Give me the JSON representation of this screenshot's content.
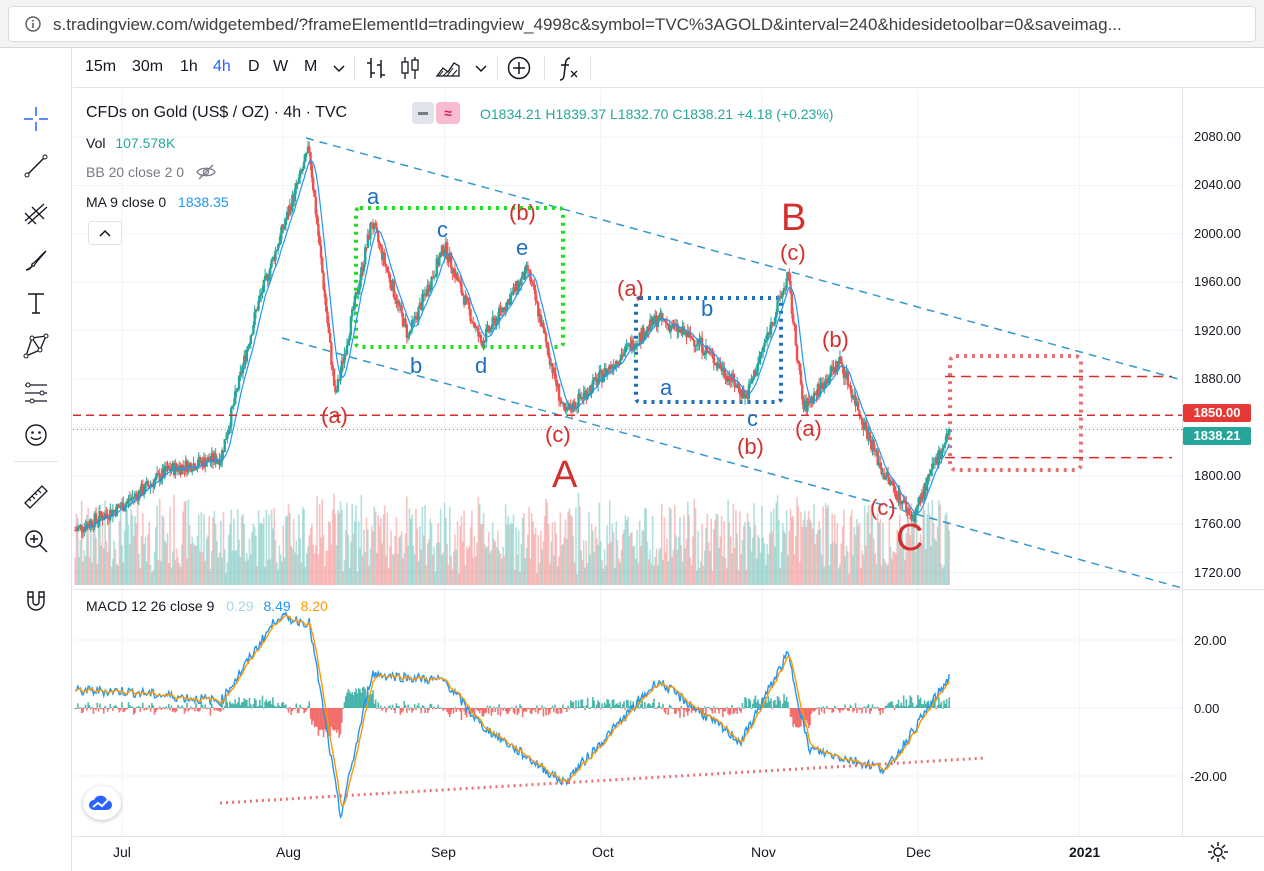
{
  "browser": {
    "url": "s.tradingview.com/widgetembed/?frameElementId=tradingview_4998c&symbol=TVC%3AGOLD&interval=240&hidesidetoolbar=0&saveimag..."
  },
  "toolbar": {
    "timeframes": [
      "15m",
      "30m",
      "1h",
      "4h",
      "D",
      "W",
      "M"
    ],
    "active_timeframe": "4h"
  },
  "legend": {
    "symbol": "CFDs on Gold (US$ / OZ) · 4h · TVC",
    "open_label": "O",
    "open": "1834.21",
    "high_label": "H",
    "high": "1839.37",
    "low_label": "L",
    "low": "1832.70",
    "close_label": "C",
    "close": "1838.21",
    "change": "+4.18 (+0.23%)",
    "vol_label": "Vol",
    "vol_value": "107.578K",
    "bb_label": "BB 20 close 2 0",
    "ma_label": "MA 9 close 0",
    "ma_value": "1838.35",
    "macd_label": "MACD 12 26 close 9",
    "macd_hist": "0.29",
    "macd_line": "8.49",
    "macd_signal": "8.20"
  },
  "price_axis": {
    "ticks": [
      "2080.00",
      "2040.00",
      "2000.00",
      "1960.00",
      "1920.00",
      "1880.00",
      "1800.00",
      "1760.00",
      "1720.00"
    ],
    "marker_1850": "1850.00",
    "last_price": "1838.21"
  },
  "macd_axis": {
    "ticks": [
      "20.00",
      "0.00",
      "-20.00"
    ]
  },
  "time_axis": {
    "labels": [
      "Jul",
      "Aug",
      "Sep",
      "Oct",
      "Nov",
      "Dec",
      "2021"
    ]
  },
  "annotations": {
    "red": [
      "(a)",
      "(b)",
      "(c)",
      "A",
      "(a)",
      "B",
      "(c)",
      "(b)",
      "(a)",
      "(b)",
      "(c)",
      "C"
    ],
    "blue": [
      "a",
      "c",
      "e",
      "b",
      "d",
      "b",
      "a",
      "c"
    ]
  },
  "colors": {
    "up": "#26a69a",
    "down": "#ef5350",
    "ma": "#2196f3",
    "annotation_red": "#d32f2f",
    "annotation_blue": "#1e6fc0",
    "green_box": "#22dd22",
    "blue_box": "#1e6fc0",
    "pink_box": "#e57373",
    "level_line": "#d32f2f",
    "price_tag_teal": "#26a69a",
    "macd_line": "#2196f3",
    "macd_signal": "#ff9800"
  },
  "chart_data": {
    "type": "candlestick",
    "symbol": "TVC:GOLD",
    "interval": "4h",
    "ylim": [
      1700,
      2100
    ],
    "key_levels": [
      1850.0
    ],
    "last_price": 1838.21,
    "approx_path": [
      {
        "x": "2020-06-22",
        "y": 1755
      },
      {
        "x": "2020-07-01",
        "y": 1775
      },
      {
        "x": "2020-07-10",
        "y": 1805
      },
      {
        "x": "2020-07-20",
        "y": 1815
      },
      {
        "x": "2020-07-27",
        "y": 1940
      },
      {
        "x": "2020-08-06",
        "y": 2070
      },
      {
        "x": "2020-08-11",
        "y": 1865
      },
      {
        "x": "2020-08-18",
        "y": 2010
      },
      {
        "x": "2020-08-25",
        "y": 1915
      },
      {
        "x": "2020-09-01",
        "y": 1990
      },
      {
        "x": "2020-09-08",
        "y": 1910
      },
      {
        "x": "2020-09-17",
        "y": 1970
      },
      {
        "x": "2020-09-24",
        "y": 1850
      },
      {
        "x": "2020-10-05",
        "y": 1900
      },
      {
        "x": "2020-10-12",
        "y": 1930
      },
      {
        "x": "2020-10-20",
        "y": 1910
      },
      {
        "x": "2020-10-29",
        "y": 1865
      },
      {
        "x": "2020-11-06",
        "y": 1965
      },
      {
        "x": "2020-11-09",
        "y": 1855
      },
      {
        "x": "2020-11-16",
        "y": 1895
      },
      {
        "x": "2020-11-24",
        "y": 1805
      },
      {
        "x": "2020-11-30",
        "y": 1765
      },
      {
        "x": "2020-12-07",
        "y": 1838
      }
    ],
    "macd_approx": [
      {
        "x": "2020-07-01",
        "y": 5
      },
      {
        "x": "2020-07-20",
        "y": 2
      },
      {
        "x": "2020-07-31",
        "y": 27
      },
      {
        "x": "2020-08-06",
        "y": 25
      },
      {
        "x": "2020-08-12",
        "y": -32
      },
      {
        "x": "2020-08-18",
        "y": 10
      },
      {
        "x": "2020-09-01",
        "y": 8
      },
      {
        "x": "2020-09-08",
        "y": -5
      },
      {
        "x": "2020-09-24",
        "y": -22
      },
      {
        "x": "2020-10-12",
        "y": 8
      },
      {
        "x": "2020-10-28",
        "y": -10
      },
      {
        "x": "2020-11-06",
        "y": 16
      },
      {
        "x": "2020-11-10",
        "y": -12
      },
      {
        "x": "2020-11-25",
        "y": -18
      },
      {
        "x": "2020-12-07",
        "y": 9
      }
    ]
  }
}
